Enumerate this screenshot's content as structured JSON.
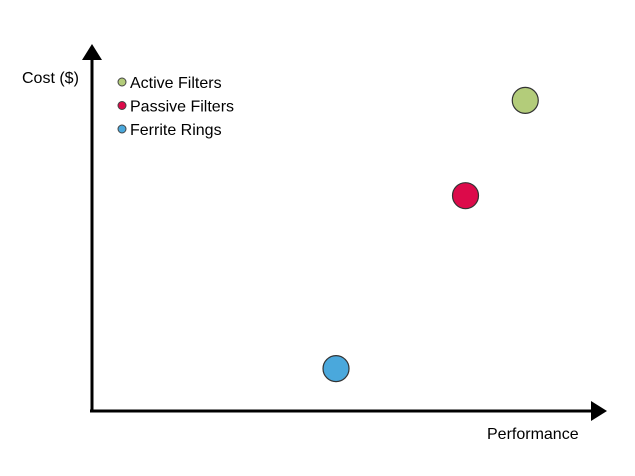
{
  "chart_data": {
    "type": "scatter",
    "title": "",
    "xlabel": "Performance",
    "ylabel": "Cost ($)",
    "legend_position": "top-left",
    "grid": false,
    "xlim": [
      0,
      10
    ],
    "ylim": [
      0,
      10
    ],
    "series": [
      {
        "name": "Active Filters",
        "color": "#b3cc7a",
        "points": [
          {
            "x": 8.7,
            "y": 8.8
          }
        ]
      },
      {
        "name": "Passive Filters",
        "color": "#dc0a4a",
        "points": [
          {
            "x": 7.5,
            "y": 6.1
          }
        ]
      },
      {
        "name": "Ferrite Rings",
        "color": "#4aa8dc",
        "points": [
          {
            "x": 4.9,
            "y": 1.2
          }
        ]
      }
    ]
  }
}
